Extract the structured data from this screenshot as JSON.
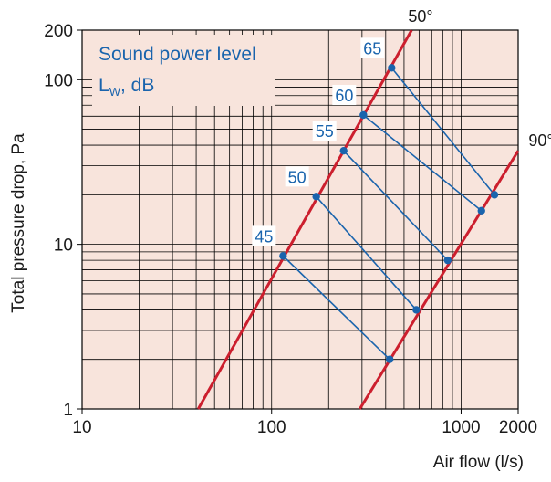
{
  "chart_data": {
    "type": "line",
    "xscale": "log",
    "yscale": "log",
    "xlim": [
      10,
      2000
    ],
    "ylim": [
      1,
      200
    ],
    "xlabel": "Air flow (l/s)",
    "ylabel": "Total pressure drop, Pa",
    "xticks": [
      {
        "value": 10,
        "label": "10"
      },
      {
        "value": 100,
        "label": "100"
      },
      {
        "value": 1000,
        "label": "1000"
      },
      {
        "value": 2000,
        "label": "2000"
      }
    ],
    "yticks": [
      {
        "value": 1,
        "label": "1"
      },
      {
        "value": 10,
        "label": "10"
      },
      {
        "value": 100,
        "label": "100"
      },
      {
        "value": 200,
        "label": "200"
      }
    ],
    "grid": true,
    "legend": {
      "title": "Sound power level",
      "unit_main": "L",
      "unit_sub": "W",
      "unit_rest": ", dB"
    },
    "colors": {
      "background": "#f8e4dc",
      "grid": "#000000",
      "angle_line": "#cc1f2e",
      "level_line": "#1a64ad",
      "label_text": "#1a64ad"
    },
    "angle_lines": [
      {
        "label": "50°",
        "start": [
          41,
          1
        ],
        "end": [
          548,
          200
        ]
      },
      {
        "label": "90°",
        "start": [
          292,
          1
        ],
        "end": [
          2000,
          37
        ]
      }
    ],
    "series": [
      {
        "name": "45",
        "values": [
          [
            115,
            8.5
          ],
          [
            420,
            2.0
          ]
        ]
      },
      {
        "name": "50",
        "values": [
          [
            172,
            19.5
          ],
          [
            580,
            4.0
          ]
        ]
      },
      {
        "name": "55",
        "values": [
          [
            240,
            37
          ],
          [
            850,
            8.0
          ]
        ]
      },
      {
        "name": "60",
        "values": [
          [
            305,
            61
          ],
          [
            1280,
            16
          ]
        ]
      },
      {
        "name": "65",
        "values": [
          [
            430,
            118
          ],
          [
            1500,
            20
          ]
        ]
      }
    ]
  }
}
